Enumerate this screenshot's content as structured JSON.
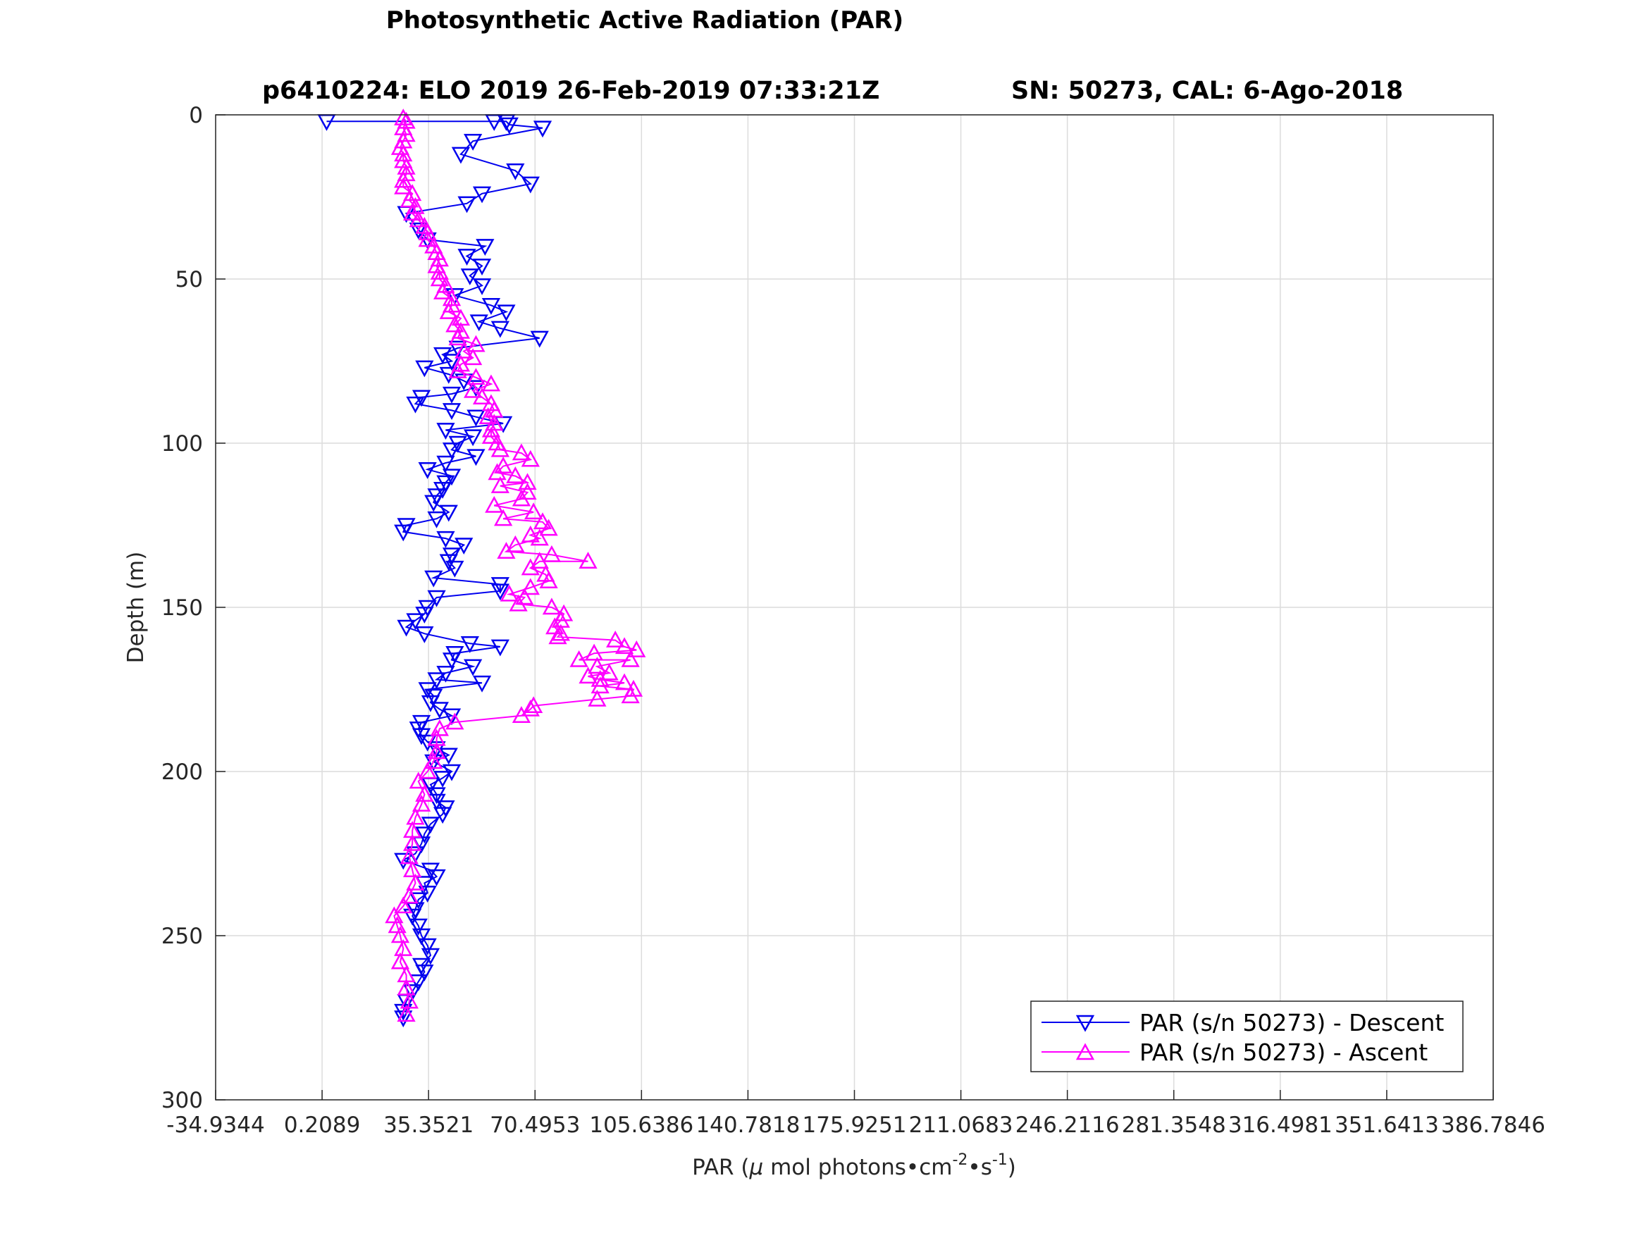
{
  "title": "Photosynthetic Active Radiation (PAR)",
  "subtitle_left": "p6410224: ELO 2019 26-Feb-2019 07:33:21Z",
  "subtitle_right": "SN: 50273, CAL: 6-Ago-2018",
  "chart_data": {
    "type": "line",
    "xlabel_main": "PAR (",
    "xlabel_mu": "μ",
    "xlabel_rest": " mol photons•cm",
    "xlabel_sup1": "-2",
    "xlabel_mid": "•s",
    "xlabel_sup2": "-1",
    "xlabel_end": ")",
    "ylabel": "Depth (m)",
    "xlim": [
      -34.9344,
      386.7846
    ],
    "ylim": [
      0,
      300
    ],
    "y_reversed": true,
    "grid": true,
    "legend_position": "bottom-right",
    "xticks": [
      -34.9344,
      0.2089,
      35.3521,
      70.4953,
      105.6386,
      140.7818,
      175.9251,
      211.0683,
      246.2116,
      281.3548,
      316.4981,
      351.6413,
      386.7846
    ],
    "xtick_labels": [
      "-34.9344",
      "0.2089",
      "35.3521",
      "70.4953",
      "105.6386",
      "140.7818",
      "175.9251",
      "211.0683",
      "246.2116",
      "281.3548",
      "316.4981",
      "351.6413",
      "386.7846"
    ],
    "yticks": [
      0,
      50,
      100,
      150,
      200,
      250,
      300
    ],
    "ytick_labels": [
      "0",
      "50",
      "100",
      "150",
      "200",
      "250",
      "300"
    ],
    "series": [
      {
        "name": "PAR (s/n 50273) - Descent",
        "color": "#0000ee",
        "marker": "triangle-down",
        "points": [
          [
            1.7,
            2
          ],
          [
            57,
            2
          ],
          [
            61,
            2
          ],
          [
            62,
            3
          ],
          [
            73,
            4
          ],
          [
            50,
            8
          ],
          [
            46,
            12
          ],
          [
            64,
            17
          ],
          [
            69,
            21
          ],
          [
            53,
            24
          ],
          [
            48,
            27
          ],
          [
            28,
            30
          ],
          [
            32,
            35
          ],
          [
            35,
            38
          ],
          [
            54,
            40
          ],
          [
            48,
            43
          ],
          [
            53,
            46
          ],
          [
            49,
            49
          ],
          [
            53,
            52
          ],
          [
            44,
            55
          ],
          [
            56,
            58
          ],
          [
            61,
            60
          ],
          [
            52,
            63
          ],
          [
            59,
            65
          ],
          [
            72,
            68
          ],
          [
            45,
            71
          ],
          [
            40,
            73
          ],
          [
            43,
            75
          ],
          [
            34,
            77
          ],
          [
            42,
            79
          ],
          [
            47,
            81
          ],
          [
            51,
            83
          ],
          [
            43,
            85
          ],
          [
            33,
            86
          ],
          [
            31,
            88
          ],
          [
            43,
            90
          ],
          [
            51,
            92
          ],
          [
            60,
            94
          ],
          [
            41,
            96
          ],
          [
            50,
            98
          ],
          [
            45,
            100
          ],
          [
            43,
            102
          ],
          [
            51,
            104
          ],
          [
            41,
            106
          ],
          [
            35,
            108
          ],
          [
            43,
            110
          ],
          [
            41,
            112
          ],
          [
            40,
            114
          ],
          [
            38,
            116
          ],
          [
            37,
            118
          ],
          [
            42,
            121
          ],
          [
            38,
            123
          ],
          [
            28,
            125
          ],
          [
            27,
            127
          ],
          [
            41,
            129
          ],
          [
            47,
            131
          ],
          [
            43,
            134
          ],
          [
            42,
            136
          ],
          [
            44,
            138
          ],
          [
            37,
            141
          ],
          [
            59,
            143
          ],
          [
            59,
            145
          ],
          [
            38,
            147
          ],
          [
            35,
            150
          ],
          [
            34,
            152
          ],
          [
            31,
            154
          ],
          [
            28,
            156
          ],
          [
            34,
            158
          ],
          [
            49,
            161
          ],
          [
            59,
            162
          ],
          [
            44,
            164
          ],
          [
            43,
            166
          ],
          [
            50,
            168
          ],
          [
            41,
            170
          ],
          [
            38,
            172
          ],
          [
            53,
            173
          ],
          [
            35,
            175
          ],
          [
            37,
            177
          ],
          [
            36,
            179
          ],
          [
            39,
            181
          ],
          [
            43,
            183
          ],
          [
            33,
            185
          ],
          [
            32,
            187
          ],
          [
            33,
            189
          ],
          [
            35,
            191
          ],
          [
            38,
            193
          ],
          [
            42,
            195
          ],
          [
            37,
            197
          ],
          [
            43,
            200
          ],
          [
            40,
            202
          ],
          [
            36,
            204
          ],
          [
            38,
            207
          ],
          [
            38,
            209
          ],
          [
            41,
            211
          ],
          [
            40,
            213
          ],
          [
            36,
            216
          ],
          [
            34,
            219
          ],
          [
            33,
            222
          ],
          [
            31,
            225
          ],
          [
            27,
            227
          ],
          [
            36,
            230
          ],
          [
            38,
            232
          ],
          [
            34,
            234
          ],
          [
            35,
            237
          ],
          [
            32,
            239
          ],
          [
            31,
            242
          ],
          [
            30,
            244
          ],
          [
            32,
            247
          ],
          [
            33,
            250
          ],
          [
            35,
            253
          ],
          [
            36,
            256
          ],
          [
            33,
            259
          ],
          [
            34,
            261
          ],
          [
            32,
            264
          ],
          [
            30,
            267
          ],
          [
            28,
            270
          ],
          [
            27,
            273
          ],
          [
            27,
            275
          ]
        ]
      },
      {
        "name": "PAR (s/n 50273) - Ascent",
        "color": "#ff00ff",
        "marker": "triangle-up",
        "points": [
          [
            28,
            274
          ],
          [
            29,
            270
          ],
          [
            28,
            266
          ],
          [
            28,
            262
          ],
          [
            26,
            258
          ],
          [
            27,
            254
          ],
          [
            26,
            250
          ],
          [
            25,
            247
          ],
          [
            24,
            244
          ],
          [
            27,
            241
          ],
          [
            29,
            238
          ],
          [
            31,
            234
          ],
          [
            30,
            230
          ],
          [
            29,
            226
          ],
          [
            30,
            222
          ],
          [
            30,
            218
          ],
          [
            31,
            214
          ],
          [
            33,
            210
          ],
          [
            34,
            207
          ],
          [
            32,
            203
          ],
          [
            35,
            200
          ],
          [
            37,
            197
          ],
          [
            38,
            194
          ],
          [
            38,
            190
          ],
          [
            39,
            187
          ],
          [
            44,
            185
          ],
          [
            66,
            183
          ],
          [
            69,
            181
          ],
          [
            70,
            180
          ],
          [
            91,
            178
          ],
          [
            102,
            177
          ],
          [
            103,
            175
          ],
          [
            92,
            174
          ],
          [
            100,
            173
          ],
          [
            92,
            172
          ],
          [
            88,
            171
          ],
          [
            95,
            170
          ],
          [
            91,
            168
          ],
          [
            102,
            166
          ],
          [
            85,
            166
          ],
          [
            90,
            164
          ],
          [
            104,
            163
          ],
          [
            100,
            162
          ],
          [
            97,
            160
          ],
          [
            78,
            159
          ],
          [
            79,
            158
          ],
          [
            77,
            156
          ],
          [
            79,
            154
          ],
          [
            80,
            152
          ],
          [
            76,
            150
          ],
          [
            65,
            149
          ],
          [
            67,
            147
          ],
          [
            62,
            146
          ],
          [
            69,
            144
          ],
          [
            75,
            142
          ],
          [
            74,
            140
          ],
          [
            69,
            138
          ],
          [
            72,
            136
          ],
          [
            88,
            136
          ],
          [
            76,
            134
          ],
          [
            61,
            133
          ],
          [
            64,
            131
          ],
          [
            72,
            129
          ],
          [
            69,
            128
          ],
          [
            75,
            126
          ],
          [
            73,
            124
          ],
          [
            60,
            123
          ],
          [
            70,
            121
          ],
          [
            57,
            119
          ],
          [
            66,
            117
          ],
          [
            68,
            115
          ],
          [
            59,
            113
          ],
          [
            68,
            112
          ],
          [
            64,
            110
          ],
          [
            58,
            109
          ],
          [
            60,
            107
          ],
          [
            69,
            105
          ],
          [
            66,
            103
          ],
          [
            59,
            102
          ],
          [
            58,
            100
          ],
          [
            56,
            98
          ],
          [
            56,
            96
          ],
          [
            57,
            94
          ],
          [
            55,
            92
          ],
          [
            57,
            90
          ],
          [
            56,
            88
          ],
          [
            53,
            86
          ],
          [
            50,
            84
          ],
          [
            56,
            82
          ],
          [
            51,
            80
          ],
          [
            45,
            78
          ],
          [
            46,
            76
          ],
          [
            50,
            74
          ],
          [
            47,
            72
          ],
          [
            51,
            70
          ],
          [
            45,
            68
          ],
          [
            46,
            66
          ],
          [
            44,
            64
          ],
          [
            46,
            62
          ],
          [
            42,
            60
          ],
          [
            43,
            58
          ],
          [
            43,
            56
          ],
          [
            40,
            54
          ],
          [
            41,
            52
          ],
          [
            39,
            50
          ],
          [
            39,
            48
          ],
          [
            38,
            46
          ],
          [
            39,
            44
          ],
          [
            38,
            42
          ],
          [
            37,
            40
          ],
          [
            35,
            38
          ],
          [
            35,
            36
          ],
          [
            34,
            34
          ],
          [
            32,
            32
          ],
          [
            30,
            30
          ],
          [
            31,
            28
          ],
          [
            29,
            26
          ],
          [
            30,
            24
          ],
          [
            27,
            22
          ],
          [
            27,
            20
          ],
          [
            28,
            18
          ],
          [
            28,
            16
          ],
          [
            27,
            14
          ],
          [
            27,
            12
          ],
          [
            26,
            10
          ],
          [
            27,
            8
          ],
          [
            28,
            6
          ],
          [
            27,
            4
          ],
          [
            28,
            2
          ],
          [
            27,
            1
          ]
        ]
      }
    ]
  }
}
